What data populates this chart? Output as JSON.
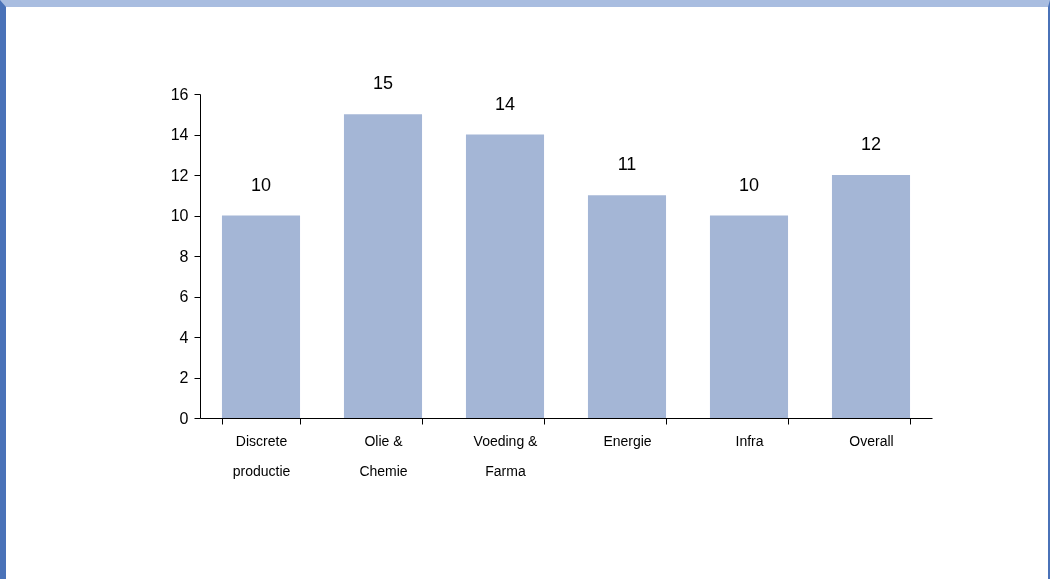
{
  "chart_data": {
    "type": "bar",
    "categories": [
      "Discrete productie",
      "Olie & Chemie",
      "Voeding & Farma",
      "Energie",
      "Infra",
      "Overall"
    ],
    "values": [
      10,
      15,
      14,
      11,
      10,
      12
    ],
    "color": "#a4b6d6",
    "ylim": [
      0,
      16
    ],
    "yticks": [
      0,
      2,
      4,
      6,
      8,
      10,
      12,
      14,
      16
    ],
    "grid": false,
    "data_labels": true
  }
}
